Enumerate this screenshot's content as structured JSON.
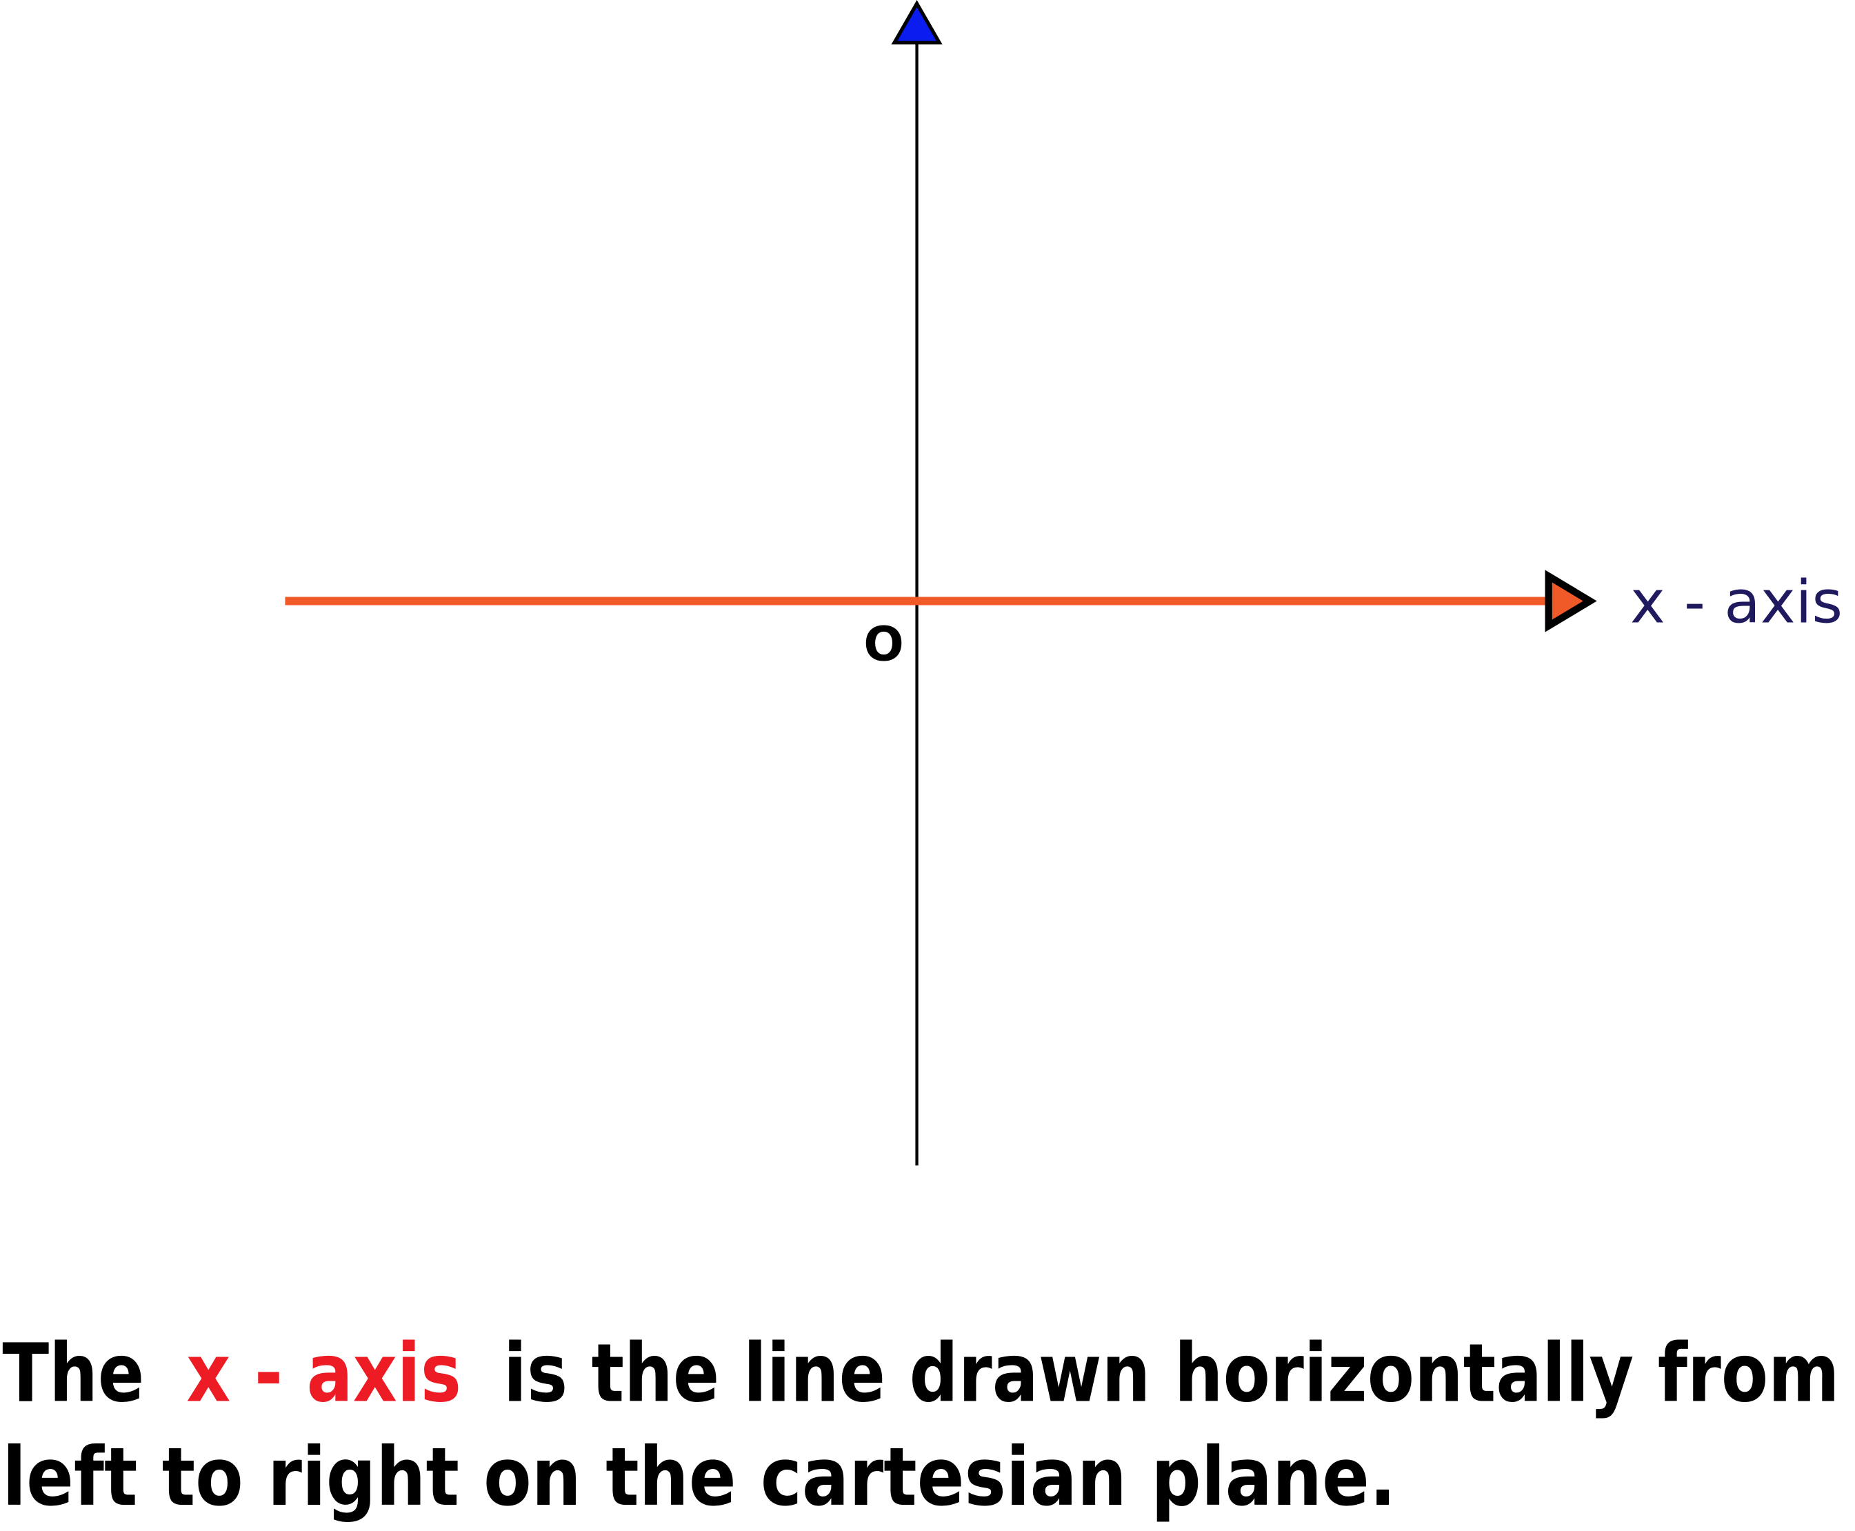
{
  "diagram": {
    "axis_label": "x - axis",
    "origin_label": "O",
    "caption": {
      "start": "The",
      "highlight": "x - axis",
      "line1_rest": "is the line drawn horizontally from",
      "line2": "left to right on the cartesian plane."
    }
  }
}
